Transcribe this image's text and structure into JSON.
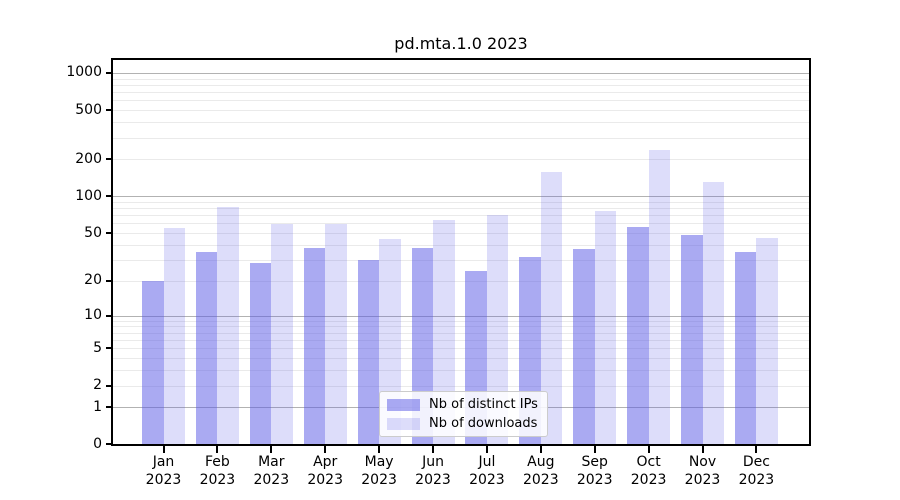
{
  "title": "pd.mta.1.0 2023",
  "chart_data": {
    "type": "bar",
    "title": "pd.mta.1.0 2023",
    "xlabel": "",
    "ylabel": "",
    "scale": "log1p",
    "grid": true,
    "legend_position": "bottom-center",
    "year": "2023",
    "categories": [
      "Jan",
      "Feb",
      "Mar",
      "Apr",
      "May",
      "Jun",
      "Jul",
      "Aug",
      "Sep",
      "Oct",
      "Nov",
      "Dec"
    ],
    "y_ticks": [
      0,
      1,
      2,
      5,
      10,
      20,
      50,
      100,
      200,
      500,
      1000
    ],
    "ylim": [
      0,
      1400
    ],
    "major_gridlines": [
      1,
      10,
      100,
      1000
    ],
    "series": [
      {
        "key": "ips",
        "name": "Nb of distinct IPs",
        "color": "rgba(85,85,230,0.5)",
        "values": [
          20,
          35,
          28,
          38,
          30,
          38,
          24,
          32,
          37,
          56,
          48,
          35
        ]
      },
      {
        "key": "downloads",
        "name": "Nb of downloads",
        "color": "rgba(85,85,230,0.2)",
        "values": [
          55,
          82,
          59,
          59,
          45,
          64,
          71,
          158,
          76,
          240,
          130,
          46
        ]
      }
    ]
  },
  "colors": {
    "bar_dark": "#a9a9f0",
    "bar_light": "#ddddfa",
    "grid_major": "#b2b2b2",
    "grid_minor": "#eaeaea",
    "spine": "#000000",
    "background": "#ffffff"
  }
}
